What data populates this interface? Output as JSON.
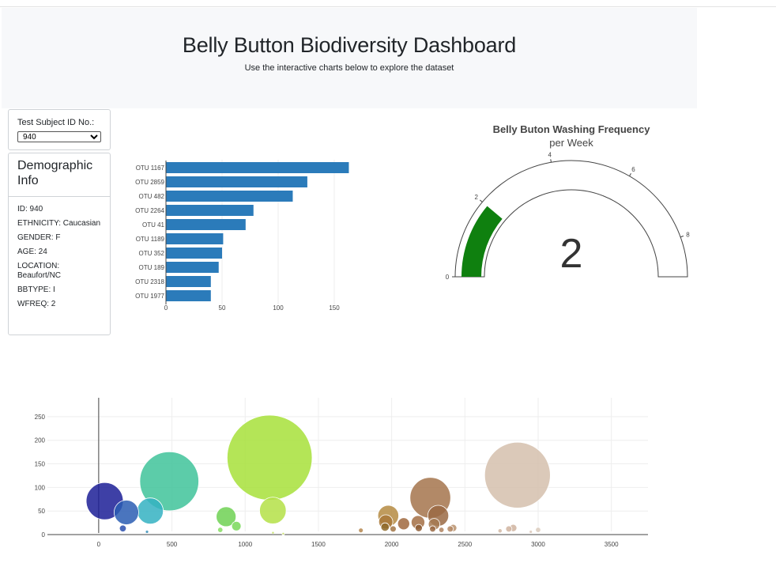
{
  "header": {
    "title": "Belly Button Biodiversity Dashboard",
    "subtitle": "Use the interactive charts below to explore the dataset"
  },
  "selector": {
    "label": "Test Subject ID No.:",
    "selected": "940"
  },
  "demographic": {
    "title": "Demographic Info",
    "rows": [
      "ID: 940",
      "ETHNICITY: Caucasian",
      "GENDER: F",
      "AGE: 24",
      "LOCATION: Beaufort/NC",
      "BBTYPE: I",
      "WFREQ: 2"
    ]
  },
  "colors": {
    "bar": "#2b7bba",
    "gauge_fill": "#0f800f",
    "gauge_outline": "#444444",
    "jumbotron_bg": "#f7f8fa"
  },
  "chart_data": [
    {
      "type": "bar",
      "orientation": "horizontal",
      "categories": [
        "OTU 1167",
        "OTU 2859",
        "OTU 482",
        "OTU 2264",
        "OTU 41",
        "OTU 1189",
        "OTU 352",
        "OTU 189",
        "OTU 2318",
        "OTU 1977"
      ],
      "values": [
        163,
        126,
        113,
        78,
        71,
        51,
        50,
        47,
        40,
        40
      ],
      "xticks": [
        0,
        50,
        100,
        150
      ],
      "xlim": [
        0,
        171
      ]
    },
    {
      "type": "gauge",
      "title": "Belly Buton Washing Frequency",
      "subtitle": "per Week",
      "value": 2,
      "display_value": "2",
      "range": [
        0,
        9
      ],
      "ticks": [
        0,
        2,
        4,
        6,
        8
      ]
    },
    {
      "type": "scatter",
      "mode": "bubble",
      "xlim": [
        -350,
        3750
      ],
      "ylim": [
        -10,
        290
      ],
      "xticks": [
        0,
        500,
        1000,
        1500,
        2000,
        2500,
        3000,
        3500
      ],
      "yticks": [
        0,
        50,
        100,
        150,
        200,
        250
      ],
      "grid": true,
      "points": [
        {
          "x": 41,
          "y": 71,
          "size": 71,
          "color": "#1c1f96"
        },
        {
          "x": 189,
          "y": 47,
          "size": 47,
          "color": "#2a5db3"
        },
        {
          "x": 165,
          "y": 13,
          "size": 13,
          "color": "#2a4fae"
        },
        {
          "x": 352,
          "y": 50,
          "size": 50,
          "color": "#34b2c2"
        },
        {
          "x": 330,
          "y": 6,
          "size": 6,
          "color": "#3a8fb8"
        },
        {
          "x": 482,
          "y": 113,
          "size": 113,
          "color": "#3fc39a"
        },
        {
          "x": 870,
          "y": 38,
          "size": 38,
          "color": "#6fd153"
        },
        {
          "x": 940,
          "y": 18,
          "size": 18,
          "color": "#79d85a"
        },
        {
          "x": 830,
          "y": 10,
          "size": 10,
          "color": "#86de63"
        },
        {
          "x": 1167,
          "y": 163,
          "size": 163,
          "color": "#a7e03a"
        },
        {
          "x": 1189,
          "y": 51,
          "size": 51,
          "color": "#b4e046"
        },
        {
          "x": 1190,
          "y": 4,
          "size": 4,
          "color": "#bfe155"
        },
        {
          "x": 1260,
          "y": 2,
          "size": 2,
          "color": "#c8e06a"
        },
        {
          "x": 1790,
          "y": 9,
          "size": 9,
          "color": "#b5874f"
        },
        {
          "x": 1977,
          "y": 40,
          "size": 40,
          "color": "#b58b42"
        },
        {
          "x": 1960,
          "y": 27,
          "size": 27,
          "color": "#a9793a"
        },
        {
          "x": 1955,
          "y": 16,
          "size": 16,
          "color": "#8e6a2a"
        },
        {
          "x": 2010,
          "y": 12,
          "size": 12,
          "color": "#a27545"
        },
        {
          "x": 2082,
          "y": 23,
          "size": 23,
          "color": "#a0683e"
        },
        {
          "x": 2180,
          "y": 26,
          "size": 26,
          "color": "#a36e44"
        },
        {
          "x": 2185,
          "y": 14,
          "size": 14,
          "color": "#8d5a33"
        },
        {
          "x": 2264,
          "y": 78,
          "size": 78,
          "color": "#a5744c"
        },
        {
          "x": 2318,
          "y": 40,
          "size": 40,
          "color": "#9a6a44"
        },
        {
          "x": 2290,
          "y": 22,
          "size": 22,
          "color": "#a67a52"
        },
        {
          "x": 2280,
          "y": 12,
          "size": 12,
          "color": "#9a6a44"
        },
        {
          "x": 2340,
          "y": 10,
          "size": 10,
          "color": "#b08460"
        },
        {
          "x": 2400,
          "y": 12,
          "size": 12,
          "color": "#b58a66"
        },
        {
          "x": 2420,
          "y": 14,
          "size": 14,
          "color": "#b8906c"
        },
        {
          "x": 2740,
          "y": 8,
          "size": 8,
          "color": "#d2b8a4"
        },
        {
          "x": 2800,
          "y": 12,
          "size": 12,
          "color": "#d0b4a0"
        },
        {
          "x": 2830,
          "y": 14,
          "size": 14,
          "color": "#cfb39f"
        },
        {
          "x": 2859,
          "y": 126,
          "size": 126,
          "color": "#d5c0ad"
        },
        {
          "x": 2950,
          "y": 6,
          "size": 6,
          "color": "#dcc8b8"
        },
        {
          "x": 3000,
          "y": 10,
          "size": 10,
          "color": "#dacbbd"
        }
      ]
    }
  ]
}
